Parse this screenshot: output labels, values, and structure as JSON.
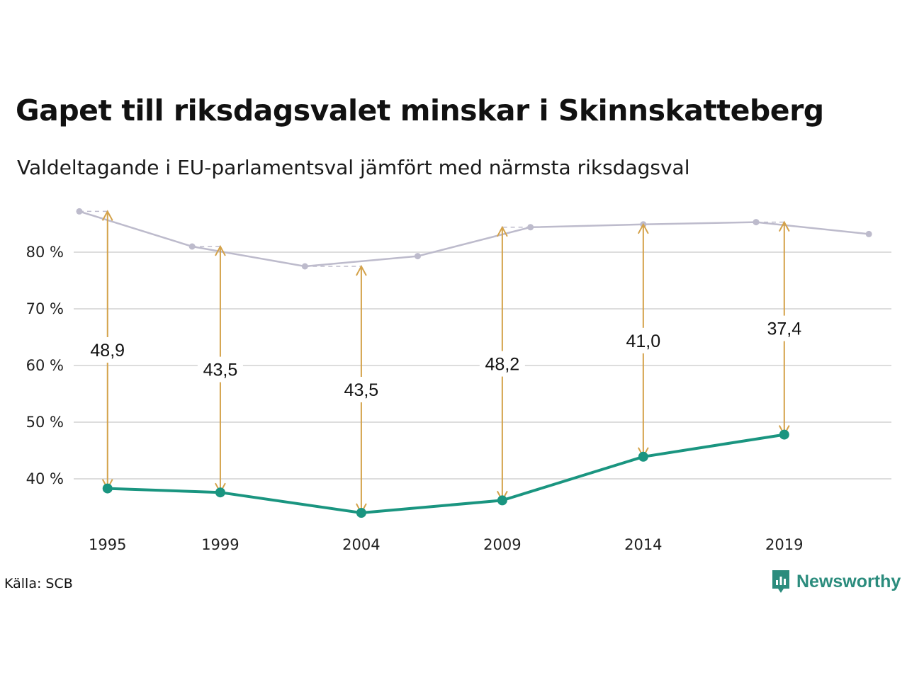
{
  "title": "Gapet till riksdagsvalet minskar i Skinnskatteberg",
  "subtitle": "Valdeltagande i EU-parlamentsval jämfört med närmsta riksdagsval",
  "source": "Källa: SCB",
  "brand": {
    "name": "Newsworthy",
    "icon": "newsworthy-logo-icon"
  },
  "colors": {
    "eu": "#1a9580",
    "riksdag": "#bdbbcc",
    "gap_arrow": "#d4a24a",
    "grid": "#dddddd"
  },
  "chart_data": {
    "type": "line",
    "title": "Gapet till riksdagsvalet minskar i Skinnskatteberg",
    "subtitle": "Valdeltagande i EU-parlamentsval jämfört med närmsta riksdagsval",
    "x_ticks": [
      1995,
      1999,
      2004,
      2009,
      2014,
      2019
    ],
    "xlim": [
      1993.8,
      2022.8
    ],
    "ylim": [
      31,
      88.5
    ],
    "y_ticks": [
      40,
      50,
      60,
      70,
      80
    ],
    "y_tick_labels": [
      "40 %",
      "50 %",
      "60 %",
      "70 %",
      "80 %"
    ],
    "grid": true,
    "series": [
      {
        "key": "riksdag",
        "style": "thin-grey-line",
        "x": [
          1994,
          1998,
          2002,
          2006,
          2010,
          2014,
          2018,
          2022
        ],
        "y": [
          87.2,
          81.0,
          77.5,
          79.3,
          84.4,
          84.9,
          85.3,
          83.2
        ]
      },
      {
        "key": "eu",
        "style": "thick-teal-line",
        "x": [
          1995,
          1999,
          2004,
          2009,
          2014,
          2019
        ],
        "y": [
          38.3,
          37.6,
          34.0,
          36.2,
          43.9,
          47.8
        ]
      }
    ],
    "gaps": [
      {
        "x": 1995,
        "from": 38.3,
        "to": 87.2,
        "label": "48,9",
        "ref_year": 1994
      },
      {
        "x": 1999,
        "from": 37.6,
        "to": 81.0,
        "label": "43,5",
        "ref_year": 1998
      },
      {
        "x": 2004,
        "from": 34.0,
        "to": 77.5,
        "label": "43,5",
        "ref_year": 2002
      },
      {
        "x": 2009,
        "from": 36.2,
        "to": 84.4,
        "label": "48,2",
        "ref_year": 2010
      },
      {
        "x": 2014,
        "from": 43.9,
        "to": 84.9,
        "label": "41,0",
        "ref_year": 2014
      },
      {
        "x": 2019,
        "from": 47.8,
        "to": 85.3,
        "label": "37,4",
        "ref_year": 2018
      }
    ]
  }
}
